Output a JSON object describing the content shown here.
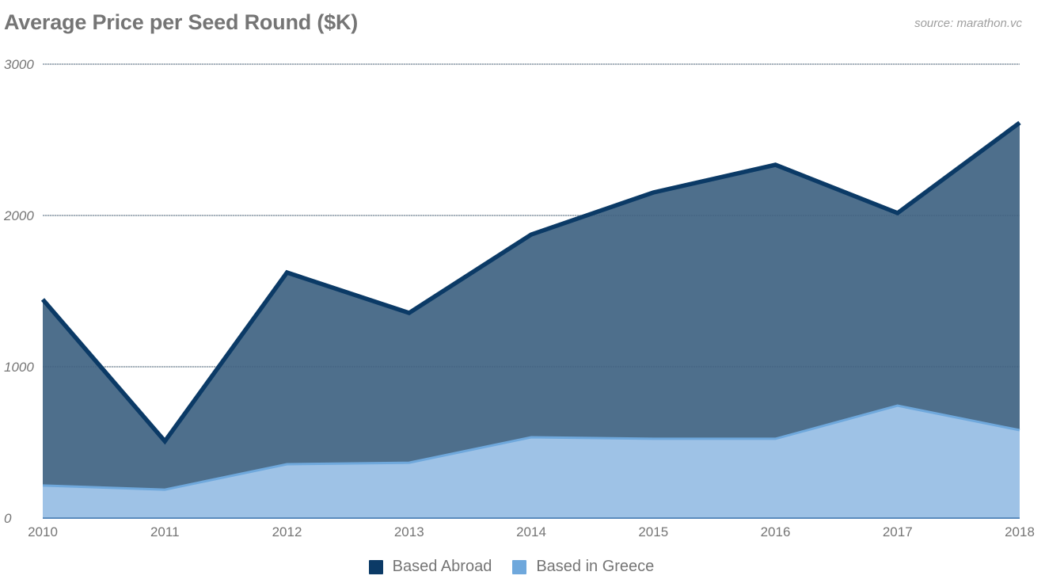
{
  "header": {
    "title": "Average Price per Seed Round ($K)",
    "source": "source: marathon.vc"
  },
  "colors": {
    "abroad_line": "#0b3a66",
    "abroad_fill": "#4e6f8c",
    "greece_line": "#6fa8dc",
    "greece_fill": "#9ec2e6",
    "gridline": "#cccccc",
    "axis_text": "#757575"
  },
  "legend": {
    "items": [
      {
        "label": "Based Abroad",
        "color": "#0b3a66"
      },
      {
        "label": "Based in Greece",
        "color": "#6fa8dc"
      }
    ]
  },
  "chart_data": {
    "type": "area",
    "title": "Average Price per Seed Round ($K)",
    "subtitle": "source: marathon.vc",
    "xlabel": "",
    "ylabel": "",
    "categories": [
      "2010",
      "2011",
      "2012",
      "2013",
      "2014",
      "2015",
      "2016",
      "2017",
      "2018"
    ],
    "series": [
      {
        "name": "Based Abroad",
        "values": [
          1445,
          508,
          1623,
          1356,
          1874,
          2152,
          2335,
          2016,
          2613
        ]
      },
      {
        "name": "Based in Greece",
        "values": [
          215,
          188,
          356,
          366,
          534,
          524,
          524,
          743,
          581
        ]
      }
    ],
    "yticks": [
      0,
      1000,
      2000,
      3000
    ],
    "ylim": [
      0,
      3000
    ],
    "grid": true,
    "legend_position": "bottom",
    "stacked": false
  }
}
